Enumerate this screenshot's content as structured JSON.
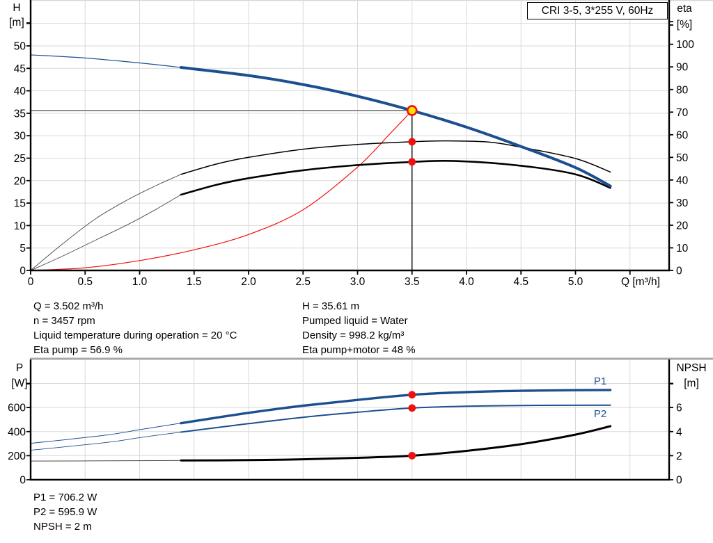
{
  "title_box": "CRI 3-5, 3*255 V, 60Hz",
  "colors": {
    "curve_blue": "#1c4f8f",
    "curve_red": "#ee1111",
    "marker_red": "#ee1111",
    "marker_yellow": "#ffe100",
    "grid": "#d9d9d9",
    "axis": "#000000",
    "duty_hline_gray": "#8c8c8c",
    "thin_gray": "#4a4a4a",
    "panel_border_gray": "#a8a8a8"
  },
  "top_info": {
    "left": [
      "Q = 3.502 m³/h",
      "n = 3457 rpm",
      "Liquid temperature during operation = 20 °C",
      "Eta pump = 56.9 %"
    ],
    "right": [
      "H = 35.61 m",
      "Pumped liquid = Water",
      "Density = 998.2 kg/m³",
      "Eta pump+motor = 48 %"
    ]
  },
  "bottom_info": [
    "P1 = 706.2 W",
    "P2 = 595.9 W",
    "NPSH = 2 m"
  ],
  "chart_data": [
    {
      "type": "line",
      "title": "CRI 3-5, 3*255 V, 60Hz",
      "x_axis": {
        "unit": "Q [m³/h]",
        "min": 0,
        "max": 5.87,
        "ticks": [
          {
            "v": 0,
            "label": "0"
          },
          {
            "v": 0.5,
            "label": "0.5"
          },
          {
            "v": 1,
            "label": "1.0"
          },
          {
            "v": 1.5,
            "label": "1.5"
          },
          {
            "v": 2,
            "label": "2.0"
          },
          {
            "v": 2.5,
            "label": "2.5"
          },
          {
            "v": 3,
            "label": "3.0"
          },
          {
            "v": 3.5,
            "label": "3.5"
          },
          {
            "v": 4,
            "label": "4.0"
          },
          {
            "v": 4.5,
            "label": "4.5"
          },
          {
            "v": 5,
            "label": "5.0"
          },
          {
            "v": 5.5,
            "label": ""
          }
        ]
      },
      "y_left": {
        "name": "H",
        "unit": "[m]",
        "min": 0,
        "max": 60,
        "ticks": [
          {
            "v": 0,
            "label": "0"
          },
          {
            "v": 5,
            "label": "5"
          },
          {
            "v": 10,
            "label": "10"
          },
          {
            "v": 15,
            "label": "15"
          },
          {
            "v": 20,
            "label": "20"
          },
          {
            "v": 25,
            "label": "25"
          },
          {
            "v": 30,
            "label": "30"
          },
          {
            "v": 35,
            "label": "35"
          },
          {
            "v": 40,
            "label": "40"
          },
          {
            "v": 45,
            "label": "45"
          },
          {
            "v": 50,
            "label": "50"
          },
          {
            "v": 55,
            "label": ""
          }
        ]
      },
      "y_right": {
        "name": "eta",
        "unit": "[%]",
        "min": 0,
        "max": 117,
        "ticks": [
          {
            "v": 0,
            "label": "0"
          },
          {
            "v": 10,
            "label": "10"
          },
          {
            "v": 20,
            "label": "20"
          },
          {
            "v": 30,
            "label": "30"
          },
          {
            "v": 40,
            "label": "40"
          },
          {
            "v": 50,
            "label": "50"
          },
          {
            "v": 60,
            "label": "60"
          },
          {
            "v": 70,
            "label": "70"
          },
          {
            "v": 80,
            "label": "80"
          },
          {
            "v": 90,
            "label": "90"
          },
          {
            "v": 100,
            "label": "100"
          },
          {
            "v": 110,
            "label": ""
          }
        ]
      },
      "series": [
        {
          "name": "system-curve",
          "axis": "left",
          "color_key": "curve_red",
          "thick_from": null,
          "thin_width": 1.2,
          "thick_width": 1.2,
          "points": [
            [
              0,
              0
            ],
            [
              0.5,
              0.6
            ],
            [
              1.0,
              2.2
            ],
            [
              1.5,
              4.6
            ],
            [
              2.0,
              8.0
            ],
            [
              2.5,
              13.5
            ],
            [
              3.0,
              23.0
            ],
            [
              3.3,
              30.5
            ],
            [
              3.5,
              35.61
            ]
          ]
        },
        {
          "name": "eta-pump",
          "axis": "right",
          "color_key": "axis",
          "thin_color_key": "thin_gray",
          "thick_from": 1.38,
          "thin_width": 0.9,
          "thick_width": 1.5,
          "points": [
            [
              0,
              0
            ],
            [
              0.3,
              12
            ],
            [
              0.6,
              23
            ],
            [
              0.9,
              31.5
            ],
            [
              1.15,
              37.5
            ],
            [
              1.38,
              42.5
            ],
            [
              1.7,
              47
            ],
            [
              2.0,
              50
            ],
            [
              2.5,
              53.6
            ],
            [
              3.0,
              55.7
            ],
            [
              3.5,
              56.9
            ],
            [
              3.8,
              57.3
            ],
            [
              4.2,
              56.8
            ],
            [
              4.5,
              54.5
            ],
            [
              5.0,
              49.5
            ],
            [
              5.32,
              43.5
            ]
          ]
        },
        {
          "name": "eta-pump-motor",
          "axis": "right",
          "color_key": "axis",
          "thin_color_key": "thin_gray",
          "thick_from": 1.38,
          "thin_width": 0.9,
          "thick_width": 2.6,
          "points": [
            [
              0,
              0
            ],
            [
              0.3,
              6.5
            ],
            [
              0.6,
              13.5
            ],
            [
              0.9,
              20.5
            ],
            [
              1.15,
              27
            ],
            [
              1.38,
              33.5
            ],
            [
              1.7,
              37.8
            ],
            [
              2.0,
              40.8
            ],
            [
              2.5,
              44.3
            ],
            [
              3.0,
              46.6
            ],
            [
              3.5,
              48.0
            ],
            [
              3.9,
              48.4
            ],
            [
              4.5,
              46.3
            ],
            [
              5.0,
              42.5
            ],
            [
              5.32,
              36.5
            ]
          ]
        },
        {
          "name": "qh-curve",
          "axis": "left",
          "color_key": "curve_blue",
          "thick_from": 1.38,
          "thin_width": 1.2,
          "thick_width": 4,
          "points": [
            [
              0,
              48.0
            ],
            [
              0.5,
              47.3
            ],
            [
              1.0,
              46.2
            ],
            [
              1.38,
              45.2
            ],
            [
              2.0,
              43.4
            ],
            [
              2.5,
              41.4
            ],
            [
              3.0,
              38.8
            ],
            [
              3.5,
              35.61
            ],
            [
              4.0,
              31.9
            ],
            [
              4.5,
              27.6
            ],
            [
              5.0,
              22.9
            ],
            [
              5.32,
              18.8
            ]
          ]
        }
      ],
      "duty_point": {
        "q": 3.5,
        "hline_value": 35.61,
        "vline": true,
        "markers": [
          {
            "axis": "left",
            "v": 35.61,
            "style": "yellow",
            "label": "duty-point-qh"
          },
          {
            "axis": "right",
            "v": 56.9,
            "style": "red",
            "label": "duty-point-eta-pump"
          },
          {
            "axis": "right",
            "v": 48,
            "style": "red",
            "label": "duty-point-eta-pump-motor"
          }
        ]
      }
    },
    {
      "type": "line",
      "x_axis": {
        "unit": "",
        "min": 0,
        "max": 5.87,
        "ticks": [
          {
            "v": 0.5,
            "label": ""
          },
          {
            "v": 1,
            "label": ""
          },
          {
            "v": 1.5,
            "label": ""
          },
          {
            "v": 2,
            "label": ""
          },
          {
            "v": 2.5,
            "label": ""
          },
          {
            "v": 3,
            "label": ""
          },
          {
            "v": 3.5,
            "label": ""
          },
          {
            "v": 4,
            "label": ""
          },
          {
            "v": 4.5,
            "label": ""
          },
          {
            "v": 5,
            "label": ""
          },
          {
            "v": 5.5,
            "label": ""
          }
        ]
      },
      "y_left": {
        "name": "P",
        "unit": "[W]",
        "min": 0,
        "max": 1000,
        "ticks": [
          {
            "v": 0,
            "label": "0"
          },
          {
            "v": 200,
            "label": "200"
          },
          {
            "v": 400,
            "label": "400"
          },
          {
            "v": 600,
            "label": "600"
          },
          {
            "v": 800,
            "label": ""
          }
        ]
      },
      "y_right": {
        "name": "NPSH",
        "unit": "[m]",
        "min": 0,
        "max": 10,
        "ticks": [
          {
            "v": 0,
            "label": "0"
          },
          {
            "v": 2,
            "label": "2"
          },
          {
            "v": 4,
            "label": "4"
          },
          {
            "v": 6,
            "label": "6"
          },
          {
            "v": 8,
            "label": ""
          }
        ]
      },
      "series": [
        {
          "name": "npsh-curve",
          "axis": "right",
          "color_key": "axis",
          "thin_color_key": "thin_gray",
          "thick_from": 1.38,
          "thin_width": 1,
          "thick_width": 3,
          "points": [
            [
              0,
              1.55
            ],
            [
              0.7,
              1.57
            ],
            [
              1.38,
              1.6
            ],
            [
              2.0,
              1.63
            ],
            [
              2.5,
              1.7
            ],
            [
              3.0,
              1.82
            ],
            [
              3.5,
              2.0
            ],
            [
              4.0,
              2.4
            ],
            [
              4.5,
              2.95
            ],
            [
              5.0,
              3.75
            ],
            [
              5.32,
              4.45
            ]
          ]
        },
        {
          "name": "p2-curve",
          "axis": "left",
          "color_key": "curve_blue",
          "label": "P2",
          "thick_from": 1.38,
          "thin_width": 0.9,
          "thick_width": 2,
          "points": [
            [
              0,
              245
            ],
            [
              0.7,
              310
            ],
            [
              1.0,
              350
            ],
            [
              1.38,
              396
            ],
            [
              2.0,
              466
            ],
            [
              2.5,
              519
            ],
            [
              3.0,
              561
            ],
            [
              3.5,
              595.9
            ],
            [
              4.0,
              611
            ],
            [
              4.5,
              617
            ],
            [
              5.0,
              619
            ],
            [
              5.32,
              620
            ]
          ]
        },
        {
          "name": "p1-curve",
          "axis": "left",
          "color_key": "curve_blue",
          "label": "P1",
          "thick_from": 1.38,
          "thin_width": 1,
          "thick_width": 3.4,
          "points": [
            [
              0,
              302
            ],
            [
              0.7,
              372
            ],
            [
              1.0,
              416
            ],
            [
              1.38,
              470
            ],
            [
              2.0,
              556
            ],
            [
              2.5,
              615
            ],
            [
              3.0,
              663
            ],
            [
              3.5,
              706.2
            ],
            [
              4.0,
              728
            ],
            [
              4.5,
              739
            ],
            [
              5.0,
              744
            ],
            [
              5.32,
              746
            ]
          ]
        }
      ],
      "duty_point": {
        "q": 3.5,
        "hline_value": null,
        "vline": false,
        "markers": [
          {
            "axis": "left",
            "v": 706.2,
            "style": "red",
            "label": "duty-point-p1"
          },
          {
            "axis": "left",
            "v": 595.9,
            "style": "red",
            "label": "duty-point-p2"
          },
          {
            "axis": "right",
            "v": 2,
            "style": "red",
            "label": "duty-point-npsh"
          }
        ]
      }
    }
  ]
}
